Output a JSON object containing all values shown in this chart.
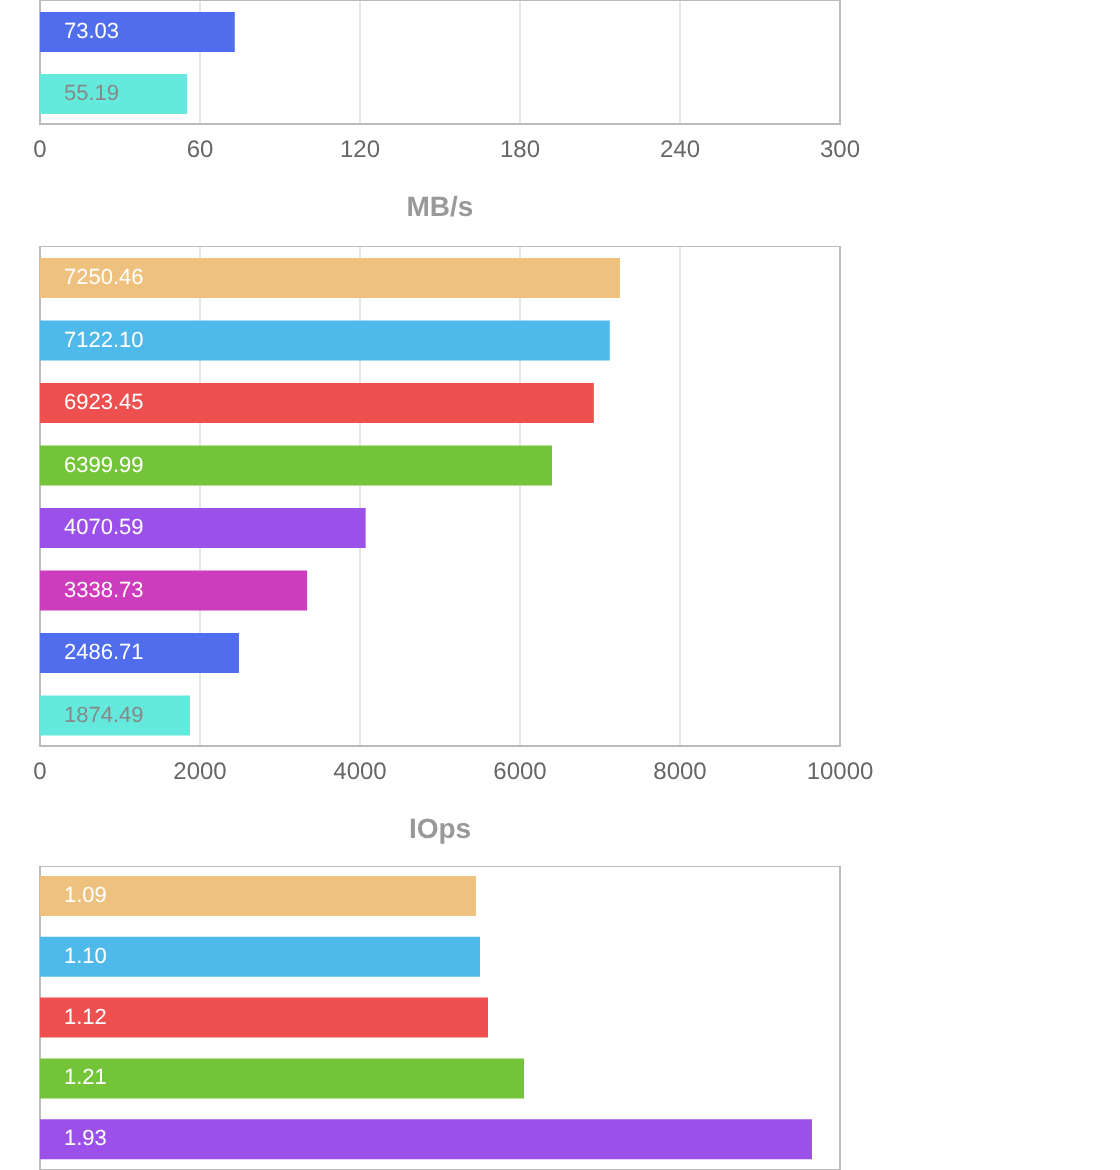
{
  "chart_data": [
    {
      "type": "bar",
      "orientation": "horizontal",
      "xlabel": "MB/s",
      "categories": [
        null,
        null
      ],
      "values": [
        73.03,
        55.19
      ],
      "colors": [
        "#4f6ded",
        "#64eadc"
      ],
      "value_labels": [
        "73.03",
        "55.19"
      ],
      "xlim": [
        0,
        300
      ],
      "xticks": [
        0,
        60,
        120,
        180,
        240,
        300
      ],
      "grid": "x",
      "legend": false
    },
    {
      "type": "bar",
      "orientation": "horizontal",
      "xlabel": "IOps",
      "categories": [
        null,
        null,
        null,
        null,
        null,
        null,
        null,
        null
      ],
      "values": [
        7250.46,
        7122.1,
        6923.45,
        6399.99,
        4070.59,
        3338.73,
        2486.71,
        1874.49
      ],
      "colors": [
        "#eec27e",
        "#4fb9ea",
        "#ee5050",
        "#74c43a",
        "#9b50ea",
        "#cd3cbd",
        "#4f6ded",
        "#64eadc"
      ],
      "value_labels": [
        "7250.46",
        "7122.10",
        "6923.45",
        "6399.99",
        "4070.59",
        "3338.73",
        "2486.71",
        "1874.49"
      ],
      "xlim": [
        0,
        10000
      ],
      "xticks": [
        0,
        2000,
        4000,
        6000,
        8000,
        10000
      ],
      "grid": "x",
      "legend": false
    },
    {
      "type": "bar",
      "orientation": "horizontal",
      "categories": [
        null,
        null,
        null,
        null,
        null
      ],
      "values": [
        1.09,
        1.1,
        1.12,
        1.21,
        1.93
      ],
      "colors": [
        "#eec27e",
        "#4fb9ea",
        "#ee5050",
        "#74c43a",
        "#9b50ea"
      ],
      "value_labels": [
        "1.09",
        "1.10",
        "1.12",
        "1.21",
        "1.93"
      ],
      "tick_labels": false,
      "grid": "x",
      "legend": false
    }
  ]
}
